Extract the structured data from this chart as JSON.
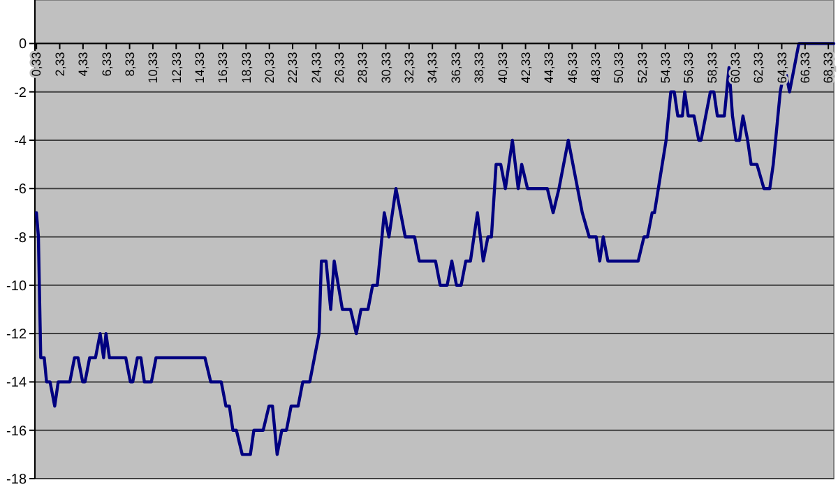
{
  "chart_data": {
    "type": "line",
    "xlim": [
      0.2,
      68.8
    ],
    "ylim": [
      -18,
      1.8
    ],
    "xticks": [
      {
        "value": 0.33,
        "label": "0,33"
      },
      {
        "value": 2.33,
        "label": "2,33"
      },
      {
        "value": 4.33,
        "label": "4,33"
      },
      {
        "value": 6.33,
        "label": "6,33"
      },
      {
        "value": 8.33,
        "label": "8,33"
      },
      {
        "value": 10.33,
        "label": "10,33"
      },
      {
        "value": 12.33,
        "label": "12,33"
      },
      {
        "value": 14.33,
        "label": "14,33"
      },
      {
        "value": 16.33,
        "label": "16,33"
      },
      {
        "value": 18.33,
        "label": "18,33"
      },
      {
        "value": 20.33,
        "label": "20,33"
      },
      {
        "value": 22.33,
        "label": "22,33"
      },
      {
        "value": 24.33,
        "label": "24,33"
      },
      {
        "value": 26.33,
        "label": "26,33"
      },
      {
        "value": 28.33,
        "label": "28,33"
      },
      {
        "value": 30.33,
        "label": "30,33"
      },
      {
        "value": 32.33,
        "label": "32,33"
      },
      {
        "value": 34.33,
        "label": "34,33"
      },
      {
        "value": 36.33,
        "label": "36,33"
      },
      {
        "value": 38.33,
        "label": "38,33"
      },
      {
        "value": 40.33,
        "label": "40,33"
      },
      {
        "value": 42.33,
        "label": "42,33"
      },
      {
        "value": 44.33,
        "label": "44,33"
      },
      {
        "value": 46.33,
        "label": "46,33"
      },
      {
        "value": 48.33,
        "label": "48,33"
      },
      {
        "value": 50.33,
        "label": "50,33"
      },
      {
        "value": 52.33,
        "label": "52,33"
      },
      {
        "value": 54.33,
        "label": "54,33"
      },
      {
        "value": 56.33,
        "label": "56,33"
      },
      {
        "value": 58.33,
        "label": "58,33"
      },
      {
        "value": 60.33,
        "label": "60,33"
      },
      {
        "value": 62.33,
        "label": "62,33"
      },
      {
        "value": 64.33,
        "label": "64,33"
      },
      {
        "value": 66.33,
        "label": "66,33"
      },
      {
        "value": 68.33,
        "label": "68,33"
      }
    ],
    "yticks": [
      0,
      -2,
      -4,
      -6,
      -8,
      -10,
      -12,
      -14,
      -16,
      -18
    ],
    "grid": "y",
    "marker": "none",
    "line_style": "solid",
    "x": [
      0.33,
      0.5,
      0.7,
      1.0,
      1.2,
      1.5,
      1.9,
      2.2,
      3.2,
      3.6,
      3.9,
      4.3,
      4.5,
      4.9,
      5.4,
      5.8,
      6.1,
      6.3,
      6.6,
      8.0,
      8.4,
      8.6,
      9.0,
      9.3,
      9.6,
      10.2,
      10.6,
      14.8,
      15.3,
      16.2,
      16.6,
      16.9,
      17.2,
      17.5,
      18.0,
      18.7,
      19.0,
      19.8,
      20.3,
      20.6,
      21.0,
      21.4,
      21.8,
      22.2,
      22.8,
      23.2,
      23.8,
      24.6,
      24.8,
      25.2,
      25.6,
      25.9,
      26.6,
      27.3,
      27.8,
      28.2,
      28.8,
      29.2,
      29.6,
      30.2,
      30.6,
      31.2,
      32.0,
      32.8,
      33.2,
      34.6,
      35.0,
      35.6,
      36.0,
      36.4,
      36.8,
      37.2,
      37.6,
      38.2,
      38.7,
      39.1,
      39.4,
      39.8,
      40.2,
      40.6,
      41.2,
      41.7,
      42.0,
      42.5,
      44.2,
      44.7,
      45.2,
      46.0,
      46.8,
      47.2,
      47.8,
      48.4,
      48.7,
      49.0,
      49.4,
      52.0,
      52.5,
      52.8,
      53.2,
      53.4,
      54.4,
      54.8,
      55.1,
      55.4,
      55.8,
      56.0,
      56.3,
      56.8,
      57.2,
      57.4,
      58.2,
      58.5,
      58.8,
      59.4,
      59.8,
      60.1,
      60.4,
      60.7,
      61.0,
      61.4,
      61.7,
      62.2,
      62.8,
      63.3,
      63.6,
      64.2,
      64.6,
      65.0,
      65.8,
      68.8
    ],
    "series": [
      {
        "color": "#000080",
        "values": [
          -7,
          -8,
          -13,
          -13,
          -14,
          -14,
          -15,
          -14,
          -14,
          -13,
          -13,
          -14,
          -14,
          -13,
          -13,
          -12,
          -13,
          -12,
          -13,
          -13,
          -14,
          -14,
          -13,
          -13,
          -14,
          -14,
          -13,
          -13,
          -14,
          -14,
          -15,
          -15,
          -16,
          -16,
          -17,
          -17,
          -16,
          -16,
          -15,
          -15,
          -17,
          -16,
          -16,
          -15,
          -15,
          -14,
          -14,
          -12,
          -9,
          -9,
          -11,
          -9,
          -11,
          -11,
          -12,
          -11,
          -11,
          -10,
          -10,
          -7,
          -8,
          -6,
          -8,
          -8,
          -9,
          -9,
          -10,
          -10,
          -9,
          -10,
          -10,
          -9,
          -9,
          -7,
          -9,
          -8,
          -8,
          -5,
          -5,
          -6,
          -4,
          -6,
          -5,
          -6,
          -6,
          -7,
          -6,
          -4,
          -6,
          -7,
          -8,
          -8,
          -9,
          -8,
          -9,
          -9,
          -8,
          -8,
          -7,
          -7,
          -4,
          -2,
          -2,
          -3,
          -3,
          -2,
          -3,
          -3,
          -4,
          -4,
          -2,
          -2,
          -3,
          -3,
          -1,
          -3,
          -4,
          -4,
          -3,
          -4,
          -5,
          -5,
          -6,
          -6,
          -5,
          -2,
          -1,
          -2,
          0,
          0
        ]
      }
    ]
  }
}
